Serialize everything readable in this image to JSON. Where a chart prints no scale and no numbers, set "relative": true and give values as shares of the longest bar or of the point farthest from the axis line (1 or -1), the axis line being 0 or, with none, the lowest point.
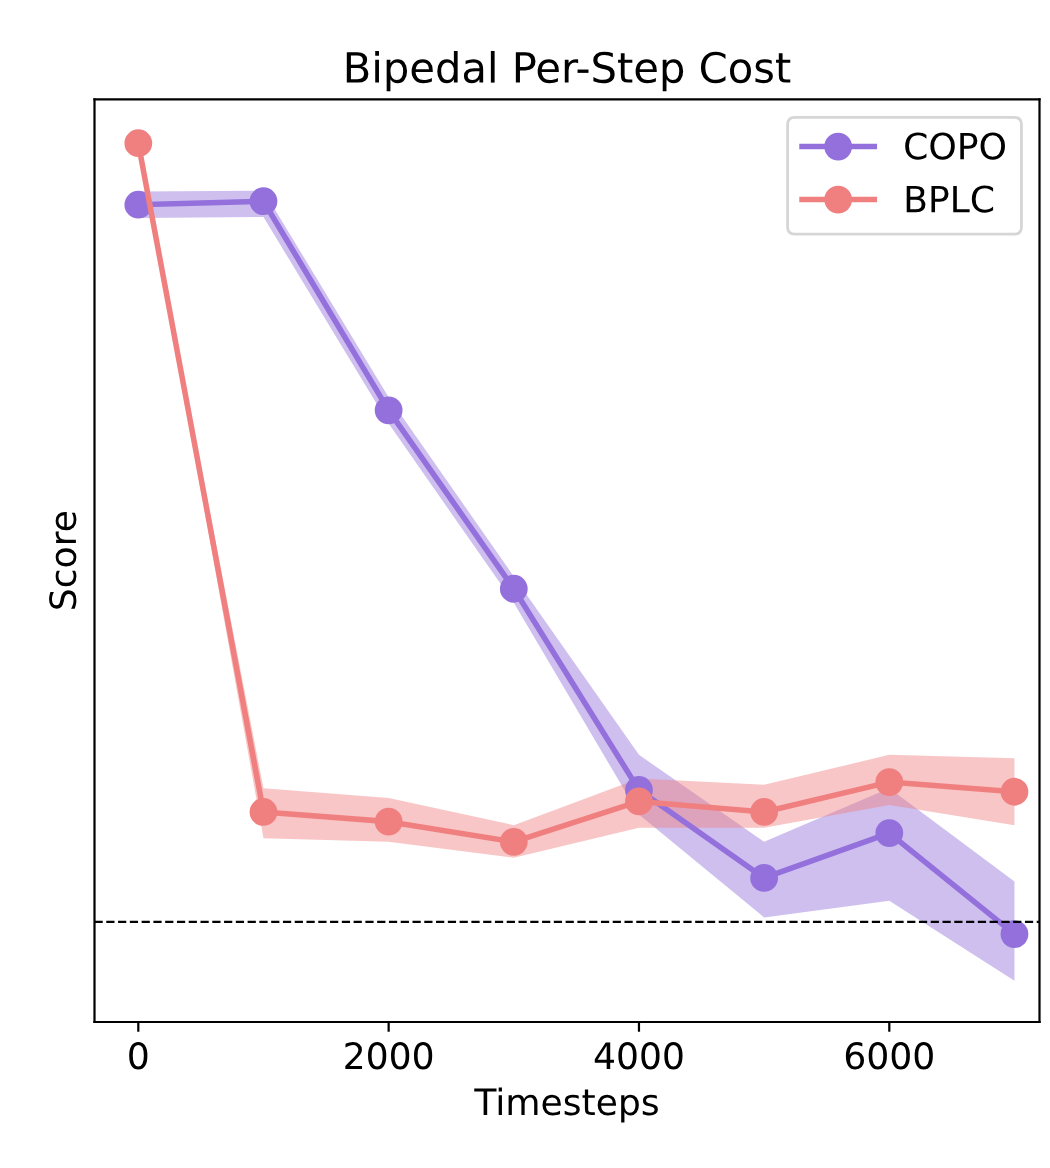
{
  "chart_data": {
    "type": "line",
    "title": "Bipedal Per-Step Cost",
    "xlabel": "Timesteps",
    "ylabel": "Score",
    "relative": true,
    "x": [
      0,
      1000,
      2000,
      3000,
      4000,
      5000,
      6000,
      7000
    ],
    "xlim": [
      -350,
      7200
    ],
    "xticks": [
      0,
      2000,
      4000,
      6000
    ],
    "series": [
      {
        "name": "COPO",
        "color": "#9370db",
        "values": [
          0.93,
          0.934,
          0.696,
          0.493,
          0.264,
          0.164,
          0.215,
          0.1
        ],
        "lower": [
          0.915,
          0.916,
          0.681,
          0.477,
          0.236,
          0.119,
          0.138,
          0.047
        ],
        "upper": [
          0.945,
          0.946,
          0.711,
          0.507,
          0.304,
          0.205,
          0.266,
          0.16
        ]
      },
      {
        "name": "BPLC",
        "color": "#f08080",
        "values": [
          1.0,
          0.239,
          0.228,
          0.205,
          0.251,
          0.239,
          0.273,
          0.262
        ],
        "lower": [
          1.0,
          0.209,
          0.205,
          0.187,
          0.221,
          0.221,
          0.247,
          0.224
        ],
        "upper": [
          1.0,
          0.266,
          0.255,
          0.224,
          0.277,
          0.27,
          0.304,
          0.3
        ]
      }
    ],
    "ref_lines": [
      {
        "axis": "y",
        "value": 0.114,
        "color": "#000000",
        "line_style": "dashed"
      }
    ],
    "marker": "circle",
    "legend": "top right",
    "grid": false
  }
}
